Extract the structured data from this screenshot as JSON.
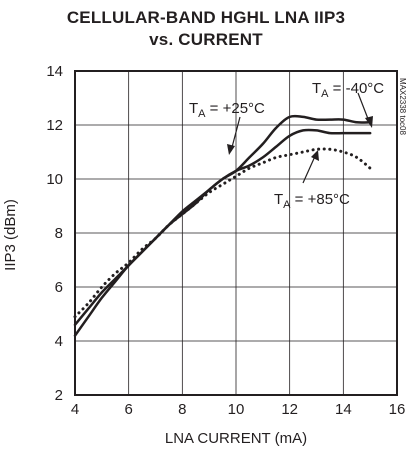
{
  "chart_data": {
    "type": "line",
    "title_lines": [
      "CELLULAR-BAND HGHL LNA IIP3",
      "vs. CURRENT"
    ],
    "xlabel": "LNA CURRENT (mA)",
    "ylabel": "IIP3 (dBm)",
    "xlim": [
      4,
      16
    ],
    "ylim": [
      2,
      14
    ],
    "x_ticks": [
      4,
      6,
      8,
      10,
      12,
      14,
      16
    ],
    "y_ticks": [
      2,
      4,
      6,
      8,
      10,
      12,
      14
    ],
    "grid": true,
    "series": [
      {
        "name": "T_A = -40°C",
        "style": "solid",
        "x": [
          4.0,
          4.5,
          5.0,
          5.5,
          6.0,
          6.5,
          7.0,
          7.5,
          8.0,
          8.5,
          9.0,
          9.5,
          10.0,
          10.5,
          11.0,
          11.5,
          12.0,
          12.5,
          13.0,
          13.5,
          14.0,
          14.5,
          15.0
        ],
        "y": [
          4.2,
          4.9,
          5.6,
          6.2,
          6.8,
          7.3,
          7.8,
          8.3,
          8.8,
          9.2,
          9.6,
          10.0,
          10.3,
          10.8,
          11.3,
          11.9,
          12.3,
          12.3,
          12.2,
          12.2,
          12.2,
          12.1,
          12.1
        ]
      },
      {
        "name": "T_A = +25°C",
        "style": "solid",
        "x": [
          4.0,
          4.5,
          5.0,
          5.5,
          6.0,
          6.5,
          7.0,
          7.5,
          8.0,
          8.5,
          9.0,
          9.5,
          10.0,
          10.5,
          11.0,
          11.5,
          12.0,
          12.5,
          13.0,
          13.5,
          14.0,
          14.5,
          15.0
        ],
        "y": [
          4.6,
          5.2,
          5.8,
          6.3,
          6.8,
          7.3,
          7.8,
          8.3,
          8.7,
          9.1,
          9.6,
          10.0,
          10.3,
          10.5,
          10.8,
          11.2,
          11.6,
          11.8,
          11.8,
          11.7,
          11.7,
          11.7,
          11.7
        ]
      },
      {
        "name": "T_A = +85°C",
        "style": "dotted",
        "x": [
          4.0,
          4.5,
          5.0,
          5.5,
          6.0,
          6.5,
          7.0,
          7.5,
          8.0,
          8.5,
          9.0,
          9.5,
          10.0,
          10.5,
          11.0,
          11.5,
          12.0,
          12.5,
          13.0,
          13.5,
          14.0,
          14.5,
          15.0
        ],
        "y": [
          4.9,
          5.4,
          6.0,
          6.5,
          6.9,
          7.4,
          7.8,
          8.3,
          8.7,
          9.1,
          9.5,
          9.8,
          10.1,
          10.4,
          10.6,
          10.8,
          10.9,
          11.0,
          11.1,
          11.1,
          11.0,
          10.8,
          10.4
        ]
      }
    ],
    "annotations": [
      {
        "subscript_label": "T",
        "sub": "A",
        "value": " = -40°C"
      },
      {
        "subscript_label": "T",
        "sub": "A",
        "value": " = +25°C"
      },
      {
        "subscript_label": "T",
        "sub": "A",
        "value": " = +85°C"
      }
    ],
    "figure_id": "MAX2338 toc08"
  }
}
